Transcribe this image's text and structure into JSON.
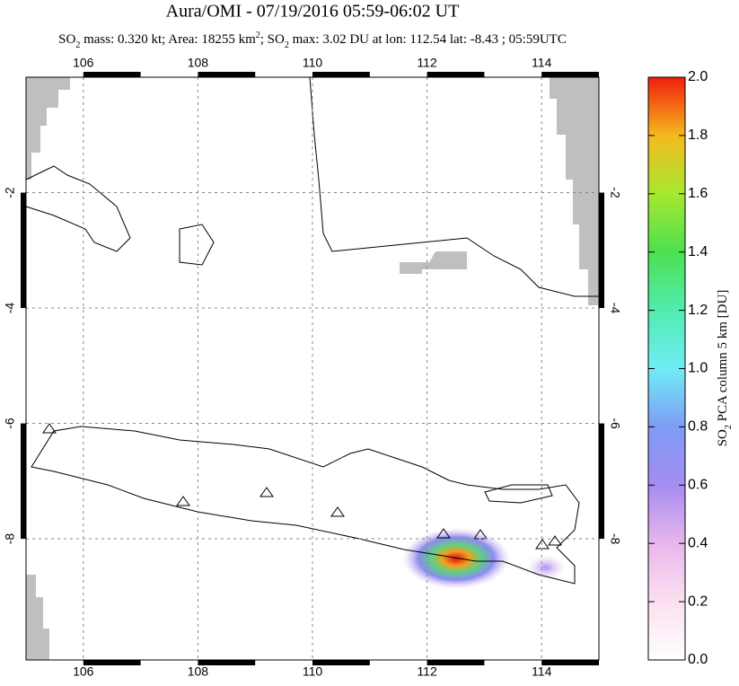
{
  "chart_data": {
    "type": "map",
    "title": "Aura/OMI - 07/19/2016 05:59-06:02 UT",
    "subtitle_parts": [
      "SO",
      "2",
      " mass: 0.320 kt; Area: 18255 km",
      "2",
      "; SO",
      "2",
      " max: 3.02 DU at lon: 112.54 lat: -8.43 ; 05:59UTC"
    ],
    "xlim": [
      105,
      115
    ],
    "ylim": [
      -10.1,
      0
    ],
    "xticks": [
      106,
      108,
      110,
      112,
      114
    ],
    "yticks": [
      -2,
      -4,
      -6,
      -8
    ],
    "grid": true,
    "colorbar": {
      "label_parts": [
        "SO",
        "2",
        " PCA column 5 km [DU]"
      ],
      "lim": [
        0,
        2
      ],
      "ticks": [
        {
          "value": 0,
          "label": "0.0"
        },
        {
          "value": 0.2,
          "label": "0.2"
        },
        {
          "value": 0.4,
          "label": "0.4"
        },
        {
          "value": 0.6,
          "label": "0.6"
        },
        {
          "value": 0.8,
          "label": "0.8"
        },
        {
          "value": 1,
          "label": "1.0"
        },
        {
          "value": 1.2,
          "label": "1.2"
        },
        {
          "value": 1.4,
          "label": "1.4"
        },
        {
          "value": 1.6,
          "label": "1.6"
        },
        {
          "value": 1.8,
          "label": "1.8"
        },
        {
          "value": 2,
          "label": "2.0"
        }
      ]
    }
  }
}
